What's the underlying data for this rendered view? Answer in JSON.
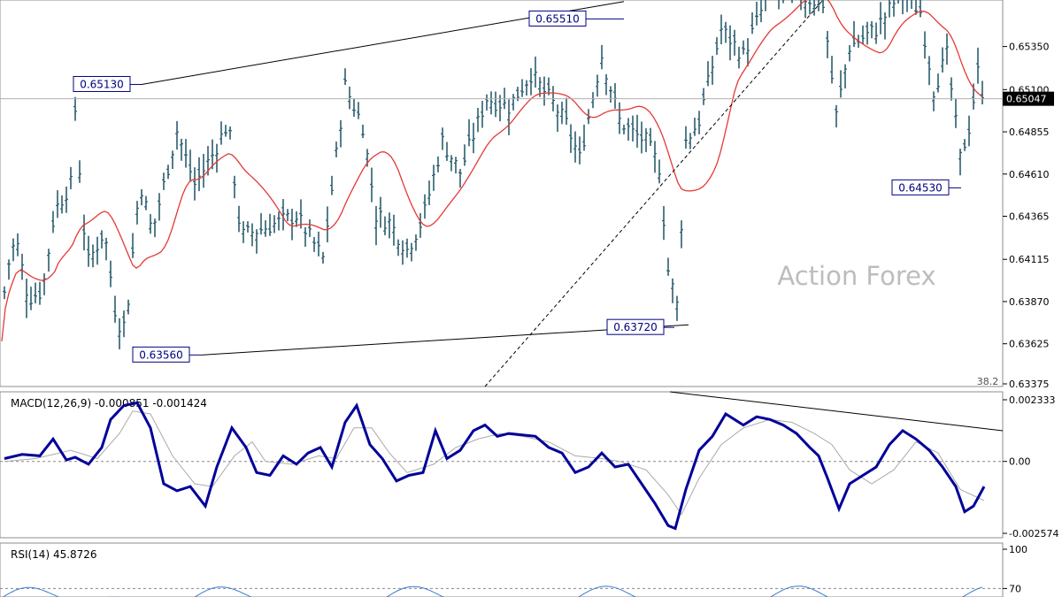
{
  "chart_data": [
    {
      "type": "ohlc-bar",
      "watermark": "Action Forex",
      "ylim": [
        0.63377,
        0.6562
      ],
      "y_ticks": [
        "0.65350",
        "0.65100",
        "0.64855",
        "0.64610",
        "0.64365",
        "0.64115",
        "0.63870",
        "0.63625",
        "0.63375"
      ],
      "current_price": "0.65047",
      "fib_label": "38.2",
      "annotations": [
        {
          "label": "0.65130",
          "value": 0.6513
        },
        {
          "label": "0.65510",
          "value": 0.6551
        },
        {
          "label": "0.63560",
          "value": 0.6356
        },
        {
          "label": "0.63720",
          "value": 0.6372
        },
        {
          "label": "0.64530",
          "value": 0.6453
        }
      ],
      "price_anchors": [
        [
          0,
          0.6345
        ],
        [
          6,
          0.6402
        ],
        [
          18,
          0.6424
        ],
        [
          32,
          0.6389
        ],
        [
          48,
          0.6393
        ],
        [
          62,
          0.644
        ],
        [
          80,
          0.6455
        ],
        [
          85,
          0.6498
        ],
        [
          98,
          0.6408
        ],
        [
          118,
          0.6428
        ],
        [
          132,
          0.6375
        ],
        [
          142,
          0.6373
        ],
        [
          158,
          0.6457
        ],
        [
          172,
          0.6427
        ],
        [
          200,
          0.6486
        ],
        [
          220,
          0.6455
        ],
        [
          240,
          0.6472
        ],
        [
          258,
          0.6491
        ],
        [
          272,
          0.6425
        ],
        [
          300,
          0.643
        ],
        [
          335,
          0.6437
        ],
        [
          365,
          0.6412
        ],
        [
          390,
          0.6512
        ],
        [
          410,
          0.6489
        ],
        [
          425,
          0.6437
        ],
        [
          440,
          0.6433
        ],
        [
          460,
          0.6417
        ],
        [
          478,
          0.6435
        ],
        [
          500,
          0.648
        ],
        [
          520,
          0.6462
        ],
        [
          550,
          0.6505
        ],
        [
          575,
          0.65
        ],
        [
          600,
          0.6519
        ],
        [
          625,
          0.6502
        ],
        [
          640,
          0.649
        ],
        [
          655,
          0.647
        ],
        [
          680,
          0.653
        ],
        [
          700,
          0.6492
        ],
        [
          715,
          0.6485
        ],
        [
          730,
          0.648
        ],
        [
          745,
          0.6465
        ],
        [
          755,
          0.6405
        ],
        [
          765,
          0.6385
        ],
        [
          775,
          0.648
        ],
        [
          790,
          0.6492
        ],
        [
          815,
          0.6545
        ],
        [
          840,
          0.653
        ],
        [
          870,
          0.6568
        ],
        [
          900,
          0.6565
        ],
        [
          930,
          0.656
        ],
        [
          945,
          0.6495
        ],
        [
          960,
          0.6535
        ],
        [
          990,
          0.6545
        ],
        [
          1020,
          0.6568
        ],
        [
          1040,
          0.6555
        ],
        [
          1055,
          0.651
        ],
        [
          1070,
          0.653
        ],
        [
          1085,
          0.647
        ],
        [
          1095,
          0.6488
        ],
        [
          1105,
          0.652
        ],
        [
          1112,
          0.6505
        ]
      ]
    },
    {
      "type": "line",
      "title": "MACD(12,26,9) -0.000851 -0.001424",
      "y_ticks": [
        "0.002333",
        "0.00",
        "-0.002574"
      ],
      "ylim": [
        -0.002574,
        0.002333
      ],
      "series": [
        {
          "color": "#000099",
          "x": [
            5,
            25,
            45,
            60,
            75,
            85,
            100,
            115,
            125,
            140,
            155,
            170,
            185,
            200,
            215,
            232,
            245,
            262,
            278,
            290,
            305,
            320,
            335,
            348,
            362,
            375,
            390,
            403,
            418,
            432,
            448,
            462,
            478,
            492,
            505,
            520,
            535,
            548,
            562,
            575,
            590,
            605,
            620,
            635,
            650,
            665,
            680,
            695,
            710,
            725,
            740,
            755,
            763,
            775,
            790,
            805,
            820,
            840,
            855,
            870,
            885,
            900,
            915,
            925,
            935,
            948,
            960,
            975,
            990,
            1005,
            1020,
            1035,
            1050,
            1065,
            1080,
            1090,
            1100,
            1112
          ],
          "values": [
            0.0001,
            0.00025,
            0.0002,
            0.0008,
            5e-05,
            0.00015,
            -0.0001,
            0.0005,
            0.0015,
            0.002,
            0.0021,
            0.0012,
            -0.0008,
            -0.00105,
            -0.0009,
            -0.0016,
            -0.0002,
            0.0012,
            0.0005,
            -0.0004,
            -0.0005,
            0.0002,
            -0.0001,
            0.0003,
            0.0005,
            -0.0002,
            0.0014,
            0.002,
            0.0006,
            0.0001,
            -0.0007,
            -0.0005,
            -0.0004,
            0.0011,
            0.0001,
            0.0004,
            0.0011,
            0.0013,
            0.0009,
            0.001,
            0.00095,
            0.0009,
            0.0005,
            0.0003,
            -0.0004,
            -0.0002,
            0.0003,
            -0.0002,
            -0.0001,
            -0.0008,
            -0.0015,
            -0.0023,
            -0.0024,
            -0.001,
            0.0004,
            0.0009,
            0.0017,
            0.0013,
            0.0016,
            0.0015,
            0.0013,
            0.001,
            0.0005,
            0.0002,
            -0.0006,
            -0.0017,
            -0.0008,
            -0.0005,
            -0.0002,
            0.0006,
            0.0011,
            0.0008,
            0.0004,
            -0.0002,
            -0.0009,
            -0.0018,
            -0.0016,
            -0.0009
          ]
        },
        {
          "color": "#aaaaaa",
          "x": [
            5,
            40,
            80,
            110,
            135,
            150,
            170,
            195,
            220,
            240,
            265,
            285,
            300,
            330,
            360,
            380,
            400,
            420,
            440,
            460,
            490,
            515,
            540,
            565,
            590,
            620,
            650,
            680,
            700,
            730,
            755,
            770,
            790,
            815,
            840,
            870,
            895,
            920,
            940,
            960,
            985,
            1010,
            1035,
            1060,
            1085,
            1112
          ],
          "values": [
            0.0,
            0.0001,
            0.0004,
            0.0001,
            0.001,
            0.0018,
            0.0017,
            0.0002,
            -0.0008,
            -0.0009,
            0.0002,
            0.0007,
            0.0,
            -0.0001,
            0.0002,
            0.0001,
            0.0012,
            0.0012,
            0.0003,
            -0.0004,
            -0.0001,
            0.0005,
            0.0008,
            0.001,
            0.0009,
            0.0007,
            0.0002,
            0.0001,
            0.0,
            -0.0003,
            -0.0012,
            -0.0019,
            -0.0006,
            0.0006,
            0.0012,
            0.0015,
            0.0014,
            0.001,
            0.0006,
            -0.0003,
            -0.0008,
            -0.0003,
            0.0007,
            0.0003,
            -0.001,
            -0.0014
          ]
        }
      ]
    },
    {
      "type": "line",
      "title": "RSI(14) 45.8726",
      "y_ticks": [
        "100",
        "70"
      ],
      "ylim": [
        0,
        100
      ]
    }
  ]
}
